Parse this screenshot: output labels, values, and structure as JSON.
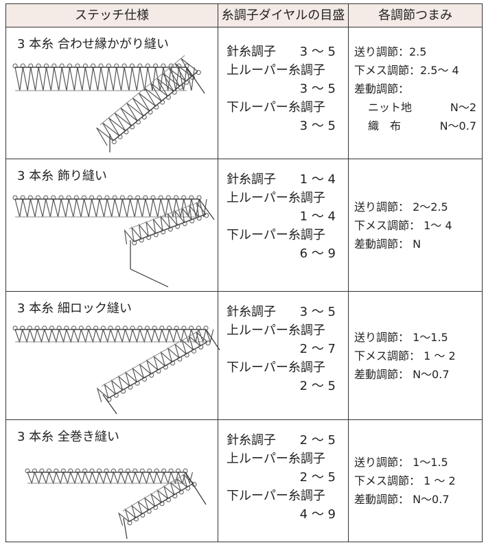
{
  "table": {
    "header": [
      "ステッチ仕様",
      "糸調子ダイヤルの目盛",
      "各調節つまみ"
    ],
    "rows": [
      {
        "stitch": "3 本糸 合わせ縁かがり縫い",
        "tension": [
          {
            "label": "針糸調子",
            "value": "3 ～ 5"
          },
          {
            "label": "上ルーパー糸調子",
            "value": "3 ～ 5"
          },
          {
            "label": "下ルーパー糸調子",
            "value": "3 ～ 5"
          }
        ],
        "adjust": [
          "送り調節：2.5",
          "下メス調節：2.5～ 4",
          "差動調節："
        ],
        "adjust_sub": [
          {
            "label": "ニット地",
            "value": "N～2"
          },
          {
            "label": "織　布",
            "value": "N～0.7"
          }
        ]
      },
      {
        "stitch": "3 本糸 飾り縫い",
        "tension": [
          {
            "label": "針糸調子",
            "value": "1 ～ 4"
          },
          {
            "label": "上ルーパー糸調子",
            "value": "1 ～ 4"
          },
          {
            "label": "下ルーパー糸調子",
            "value": "6 ～ 9"
          }
        ],
        "adjust": [
          "送り調節： 2～2.5",
          "下メス調節： 1～ 4",
          "差動調節： N"
        ]
      },
      {
        "stitch": "3 本糸 細ロック縫い",
        "tension": [
          {
            "label": "針糸調子",
            "value": "3 ～ 5"
          },
          {
            "label": "上ルーパー糸調子",
            "value": "2 ～ 7"
          },
          {
            "label": "下ルーパー糸調子",
            "value": "2 ～ 5"
          }
        ],
        "adjust": [
          "送り調節： 1～1.5",
          "下メス調節： 1 ～ 2",
          "差動調節： N～0.7"
        ]
      },
      {
        "stitch": "3 本糸 全巻き縫い",
        "tension": [
          {
            "label": "針糸調子",
            "value": "2 ～ 5"
          },
          {
            "label": "上ルーパー糸調子",
            "value": "2 ～ 5"
          },
          {
            "label": "下ルーパー糸調子",
            "value": "4 ～ 9"
          }
        ],
        "adjust": [
          "送り調節： 1～1.5",
          "下メス調節： 1 ～ 2",
          "差動調節： N～0.7"
        ]
      }
    ]
  }
}
